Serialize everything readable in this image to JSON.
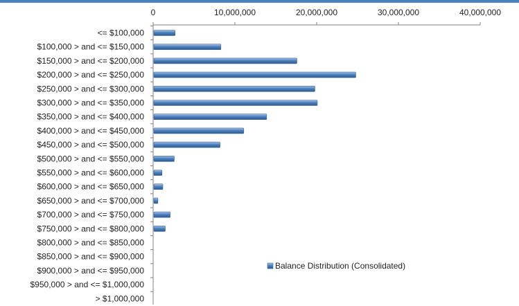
{
  "chart_data": {
    "type": "bar",
    "orientation": "horizontal",
    "title": "",
    "xlabel": "",
    "ylabel": "",
    "xlim": [
      0,
      40000000
    ],
    "x_ticks": [
      0,
      10000000,
      20000000,
      30000000,
      40000000
    ],
    "x_tick_labels": [
      "0",
      "10,000,000",
      "20,000,000",
      "30,000,000",
      "40,000,000"
    ],
    "x_axis_position": "top",
    "grid": false,
    "legend_position": "bottom-right",
    "categories": [
      "<= $100,000",
      "$100,000 > and <= $150,000",
      "$150,000 > and <= $200,000",
      "$200,000 > and <= $250,000",
      "$250,000 > and <= $300,000",
      "$300,000 > and <= $350,000",
      "$350,000 > and <= $400,000",
      "$400,000 > and <= $450,000",
      "$450,000 > and <= $500,000",
      "$500,000 > and <= $550,000",
      "$550,000 > and <= $600,000",
      "$600,000 > and <= $650,000",
      "$650,000 > and <= $700,000",
      "$700,000 > and <= $750,000",
      "$750,000 > and <= $800,000",
      "$800,000 > and <= $850,000",
      "$850,000 > and <= $900,000",
      "$900,000 > and <= $950,000",
      "$950,000 > and <= $1,000,000",
      "> $1,000,000"
    ],
    "series": [
      {
        "name": "Balance Distribution (Consolidated)",
        "color": "#4F81BD",
        "values": [
          2600000,
          8200000,
          17500000,
          24700000,
          19700000,
          20000000,
          13800000,
          11000000,
          8100000,
          2500000,
          1000000,
          1100000,
          500000,
          2000000,
          1400000,
          0,
          0,
          0,
          0,
          0
        ]
      }
    ]
  },
  "colors": {
    "accent_bar": "#4F81BD",
    "top_strip": "#4F81BD",
    "axis": "#808080"
  }
}
